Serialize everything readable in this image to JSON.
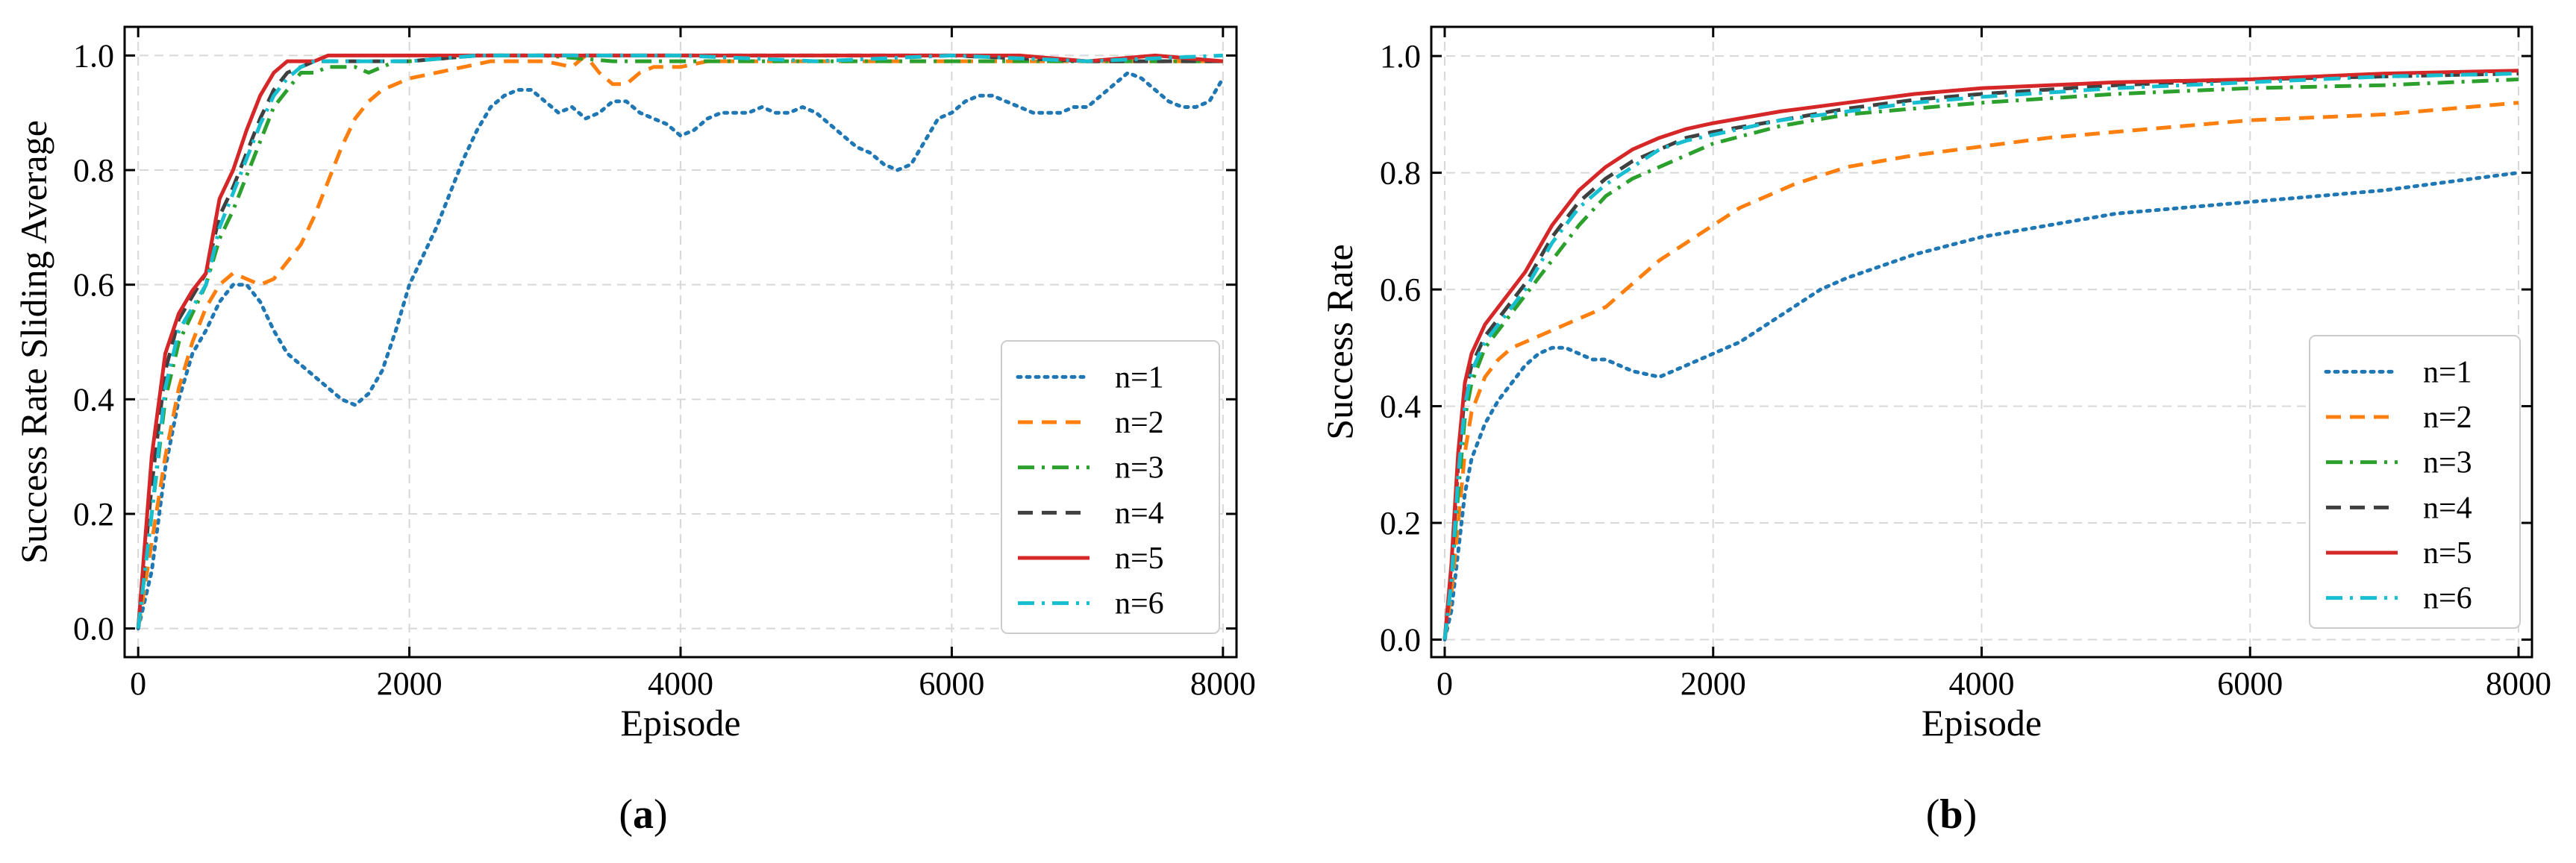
{
  "chart_data": [
    {
      "type": "line",
      "panel_label": "a",
      "title": "",
      "xlabel": "Episode",
      "ylabel": "Success Rate Sliding Average",
      "xlim": [
        -100,
        8100
      ],
      "ylim": [
        -0.05,
        1.05
      ],
      "xticks": [
        0,
        2000,
        4000,
        6000,
        8000
      ],
      "xtick_labels": [
        "0",
        "2000",
        "4000",
        "6000",
        "8000"
      ],
      "yticks": [
        0.0,
        0.2,
        0.4,
        0.6,
        0.8,
        1.0
      ],
      "ytick_labels": [
        "0.0",
        "0.2",
        "0.4",
        "0.6",
        "0.8",
        "1.0"
      ],
      "grid": true,
      "legend_position": "bottom-right",
      "series": [
        {
          "name": "n=1",
          "color": "#1f77b4",
          "style": "dotted",
          "x": [
            0,
            100,
            200,
            300,
            400,
            500,
            600,
            700,
            800,
            900,
            1000,
            1100,
            1200,
            1300,
            1400,
            1500,
            1600,
            1700,
            1800,
            1900,
            2000,
            2100,
            2200,
            2300,
            2400,
            2500,
            2600,
            2700,
            2800,
            2900,
            3000,
            3100,
            3200,
            3300,
            3400,
            3500,
            3600,
            3700,
            3800,
            3900,
            4000,
            4100,
            4200,
            4300,
            4400,
            4500,
            4600,
            4700,
            4800,
            4900,
            5000,
            5100,
            5200,
            5300,
            5400,
            5500,
            5600,
            5700,
            5800,
            5900,
            6000,
            6100,
            6200,
            6300,
            6400,
            6500,
            6600,
            6700,
            6800,
            6900,
            7000,
            7100,
            7200,
            7300,
            7400,
            7500,
            7600,
            7700,
            7800,
            7900,
            8000
          ],
          "y": [
            0.0,
            0.1,
            0.28,
            0.4,
            0.48,
            0.52,
            0.57,
            0.6,
            0.6,
            0.57,
            0.52,
            0.48,
            0.46,
            0.44,
            0.42,
            0.4,
            0.39,
            0.41,
            0.45,
            0.52,
            0.6,
            0.65,
            0.7,
            0.76,
            0.82,
            0.87,
            0.91,
            0.93,
            0.94,
            0.94,
            0.92,
            0.9,
            0.91,
            0.89,
            0.9,
            0.92,
            0.92,
            0.9,
            0.89,
            0.88,
            0.86,
            0.87,
            0.89,
            0.9,
            0.9,
            0.9,
            0.91,
            0.9,
            0.9,
            0.91,
            0.9,
            0.88,
            0.86,
            0.84,
            0.83,
            0.81,
            0.8,
            0.81,
            0.85,
            0.89,
            0.9,
            0.92,
            0.93,
            0.93,
            0.92,
            0.91,
            0.9,
            0.9,
            0.9,
            0.91,
            0.91,
            0.93,
            0.95,
            0.97,
            0.96,
            0.94,
            0.92,
            0.91,
            0.91,
            0.92,
            0.96
          ]
        },
        {
          "name": "n=2",
          "color": "#ff7f0e",
          "style": "dashed",
          "x": [
            0,
            100,
            200,
            300,
            400,
            500,
            600,
            700,
            800,
            900,
            1000,
            1100,
            1200,
            1300,
            1400,
            1500,
            1600,
            1700,
            1800,
            1900,
            2000,
            2200,
            2400,
            2600,
            2800,
            3000,
            3200,
            3300,
            3400,
            3500,
            3600,
            3700,
            3800,
            3900,
            4000,
            4200,
            4400,
            4600,
            4800,
            5000,
            5500,
            6000,
            6500,
            7000,
            7500,
            8000
          ],
          "y": [
            0.0,
            0.15,
            0.3,
            0.42,
            0.5,
            0.56,
            0.6,
            0.62,
            0.61,
            0.6,
            0.61,
            0.64,
            0.67,
            0.72,
            0.78,
            0.84,
            0.89,
            0.92,
            0.94,
            0.95,
            0.96,
            0.97,
            0.98,
            0.99,
            0.99,
            0.99,
            0.98,
            1.0,
            0.97,
            0.95,
            0.95,
            0.97,
            0.98,
            0.98,
            0.98,
            0.99,
            0.99,
            0.99,
            0.99,
            0.99,
            0.99,
            0.99,
            0.99,
            0.99,
            0.99,
            0.99
          ]
        },
        {
          "name": "n=3",
          "color": "#2ca02c",
          "style": "dashdot",
          "x": [
            0,
            100,
            200,
            300,
            400,
            500,
            600,
            700,
            800,
            900,
            1000,
            1100,
            1200,
            1300,
            1400,
            1500,
            1600,
            1700,
            1800,
            1900,
            2000,
            2500,
            3000,
            3500,
            4000,
            5000,
            6000,
            7000,
            8000
          ],
          "y": [
            0.0,
            0.2,
            0.4,
            0.5,
            0.55,
            0.6,
            0.68,
            0.73,
            0.79,
            0.85,
            0.91,
            0.94,
            0.97,
            0.97,
            0.98,
            0.98,
            0.98,
            0.97,
            0.98,
            0.99,
            0.99,
            1.0,
            1.0,
            0.99,
            0.99,
            0.99,
            0.99,
            0.99,
            0.99
          ]
        },
        {
          "name": "n=4",
          "color": "#404040",
          "style": "dashed",
          "x": [
            0,
            100,
            200,
            300,
            400,
            500,
            600,
            700,
            800,
            900,
            1000,
            1100,
            1200,
            1300,
            1400,
            1500,
            2000,
            2500,
            3000,
            3500,
            4000,
            5000,
            6000,
            7000,
            8000
          ],
          "y": [
            0.0,
            0.25,
            0.45,
            0.54,
            0.58,
            0.62,
            0.72,
            0.77,
            0.83,
            0.89,
            0.94,
            0.97,
            0.98,
            0.99,
            0.99,
            0.99,
            0.99,
            1.0,
            1.0,
            1.0,
            1.0,
            1.0,
            1.0,
            0.99,
            0.99
          ]
        },
        {
          "name": "n=5",
          "color": "#d62728",
          "style": "solid",
          "x": [
            0,
            100,
            200,
            300,
            400,
            500,
            600,
            700,
            800,
            900,
            1000,
            1100,
            1200,
            1300,
            1400,
            1500,
            2000,
            2500,
            3000,
            3500,
            4000,
            5000,
            6000,
            6500,
            7000,
            7500,
            8000
          ],
          "y": [
            0.0,
            0.3,
            0.48,
            0.55,
            0.59,
            0.62,
            0.75,
            0.8,
            0.87,
            0.93,
            0.97,
            0.99,
            0.99,
            0.99,
            1.0,
            1.0,
            1.0,
            1.0,
            1.0,
            1.0,
            1.0,
            1.0,
            1.0,
            1.0,
            0.99,
            1.0,
            0.99
          ]
        },
        {
          "name": "n=6",
          "color": "#17becf",
          "style": "dashdot",
          "x": [
            0,
            100,
            200,
            300,
            400,
            500,
            600,
            700,
            800,
            900,
            1000,
            1100,
            1200,
            1300,
            1400,
            1500,
            2000,
            2500,
            3000,
            3500,
            4000,
            5000,
            6000,
            7000,
            8000
          ],
          "y": [
            0.0,
            0.2,
            0.42,
            0.52,
            0.56,
            0.6,
            0.7,
            0.76,
            0.82,
            0.88,
            0.93,
            0.96,
            0.98,
            0.99,
            0.99,
            0.99,
            0.99,
            1.0,
            1.0,
            1.0,
            1.0,
            0.99,
            1.0,
            0.99,
            1.0
          ]
        }
      ]
    },
    {
      "type": "line",
      "panel_label": "b",
      "title": "",
      "xlabel": "Episode",
      "ylabel": "Success Rate",
      "xlim": [
        -100,
        8100
      ],
      "ylim": [
        -0.03,
        1.05
      ],
      "xticks": [
        0,
        2000,
        4000,
        6000,
        8000
      ],
      "xtick_labels": [
        "0",
        "2000",
        "4000",
        "6000",
        "8000"
      ],
      "yticks": [
        0.0,
        0.2,
        0.4,
        0.6,
        0.8,
        1.0
      ],
      "ytick_labels": [
        "0.0",
        "0.2",
        "0.4",
        "0.6",
        "0.8",
        "1.0"
      ],
      "grid": true,
      "legend_position": "bottom-right",
      "series": [
        {
          "name": "n=1",
          "color": "#1f77b4",
          "style": "dotted",
          "x": [
            0,
            50,
            100,
            150,
            200,
            300,
            400,
            500,
            600,
            700,
            800,
            900,
            1000,
            1100,
            1200,
            1300,
            1400,
            1500,
            1600,
            1700,
            1800,
            1900,
            2000,
            2200,
            2400,
            2600,
            2800,
            3000,
            3500,
            4000,
            4500,
            5000,
            5500,
            6000,
            6500,
            7000,
            7500,
            8000
          ],
          "y": [
            0.0,
            0.05,
            0.15,
            0.25,
            0.31,
            0.37,
            0.41,
            0.44,
            0.47,
            0.49,
            0.5,
            0.5,
            0.49,
            0.48,
            0.48,
            0.47,
            0.46,
            0.455,
            0.45,
            0.46,
            0.47,
            0.48,
            0.49,
            0.51,
            0.54,
            0.57,
            0.6,
            0.62,
            0.66,
            0.69,
            0.71,
            0.73,
            0.74,
            0.75,
            0.76,
            0.77,
            0.785,
            0.8
          ]
        },
        {
          "name": "n=2",
          "color": "#ff7f0e",
          "style": "dashed",
          "x": [
            0,
            50,
            100,
            150,
            200,
            300,
            400,
            500,
            600,
            700,
            800,
            900,
            1000,
            1100,
            1200,
            1300,
            1400,
            1500,
            1600,
            1800,
            2000,
            2200,
            2400,
            2600,
            2800,
            3000,
            3500,
            4000,
            4500,
            5000,
            5500,
            6000,
            6500,
            7000,
            7500,
            8000
          ],
          "y": [
            0.0,
            0.08,
            0.2,
            0.32,
            0.39,
            0.45,
            0.48,
            0.5,
            0.51,
            0.52,
            0.53,
            0.54,
            0.55,
            0.56,
            0.57,
            0.59,
            0.61,
            0.63,
            0.65,
            0.68,
            0.71,
            0.74,
            0.76,
            0.78,
            0.795,
            0.81,
            0.83,
            0.845,
            0.86,
            0.87,
            0.88,
            0.89,
            0.895,
            0.9,
            0.91,
            0.92
          ]
        },
        {
          "name": "n=3",
          "color": "#2ca02c",
          "style": "dashdot",
          "x": [
            0,
            50,
            100,
            150,
            200,
            300,
            400,
            500,
            600,
            700,
            800,
            900,
            1000,
            1200,
            1400,
            1600,
            1800,
            2000,
            2500,
            3000,
            3500,
            4000,
            5000,
            6000,
            7000,
            8000
          ],
          "y": [
            0.0,
            0.1,
            0.25,
            0.38,
            0.44,
            0.5,
            0.53,
            0.56,
            0.59,
            0.62,
            0.65,
            0.68,
            0.71,
            0.76,
            0.79,
            0.81,
            0.83,
            0.85,
            0.88,
            0.9,
            0.91,
            0.92,
            0.935,
            0.945,
            0.95,
            0.96
          ]
        },
        {
          "name": "n=4",
          "color": "#404040",
          "style": "dashed",
          "x": [
            0,
            50,
            100,
            150,
            200,
            300,
            400,
            500,
            600,
            700,
            800,
            900,
            1000,
            1200,
            1400,
            1600,
            1800,
            2000,
            2500,
            3000,
            3500,
            4000,
            5000,
            6000,
            7000,
            8000
          ],
          "y": [
            0.0,
            0.12,
            0.3,
            0.42,
            0.47,
            0.52,
            0.55,
            0.58,
            0.61,
            0.65,
            0.69,
            0.72,
            0.75,
            0.79,
            0.82,
            0.84,
            0.86,
            0.87,
            0.89,
            0.91,
            0.925,
            0.935,
            0.95,
            0.96,
            0.965,
            0.97
          ]
        },
        {
          "name": "n=5",
          "color": "#d62728",
          "style": "solid",
          "x": [
            0,
            50,
            100,
            150,
            200,
            300,
            400,
            500,
            600,
            700,
            800,
            900,
            1000,
            1200,
            1400,
            1600,
            1800,
            2000,
            2500,
            3000,
            3500,
            4000,
            5000,
            6000,
            7000,
            8000
          ],
          "y": [
            0.0,
            0.13,
            0.32,
            0.44,
            0.49,
            0.54,
            0.57,
            0.6,
            0.63,
            0.67,
            0.71,
            0.74,
            0.77,
            0.81,
            0.84,
            0.86,
            0.875,
            0.885,
            0.905,
            0.92,
            0.935,
            0.945,
            0.955,
            0.96,
            0.97,
            0.975
          ]
        },
        {
          "name": "n=6",
          "color": "#17becf",
          "style": "dashdot",
          "x": [
            0,
            50,
            100,
            150,
            200,
            300,
            400,
            500,
            600,
            700,
            800,
            900,
            1000,
            1200,
            1400,
            1600,
            1800,
            2000,
            2500,
            3000,
            3500,
            4000,
            5000,
            6000,
            7000,
            8000
          ],
          "y": [
            0.0,
            0.1,
            0.28,
            0.4,
            0.46,
            0.51,
            0.54,
            0.57,
            0.6,
            0.64,
            0.68,
            0.71,
            0.74,
            0.78,
            0.81,
            0.84,
            0.855,
            0.865,
            0.89,
            0.905,
            0.92,
            0.93,
            0.945,
            0.955,
            0.965,
            0.97
          ]
        }
      ]
    }
  ]
}
